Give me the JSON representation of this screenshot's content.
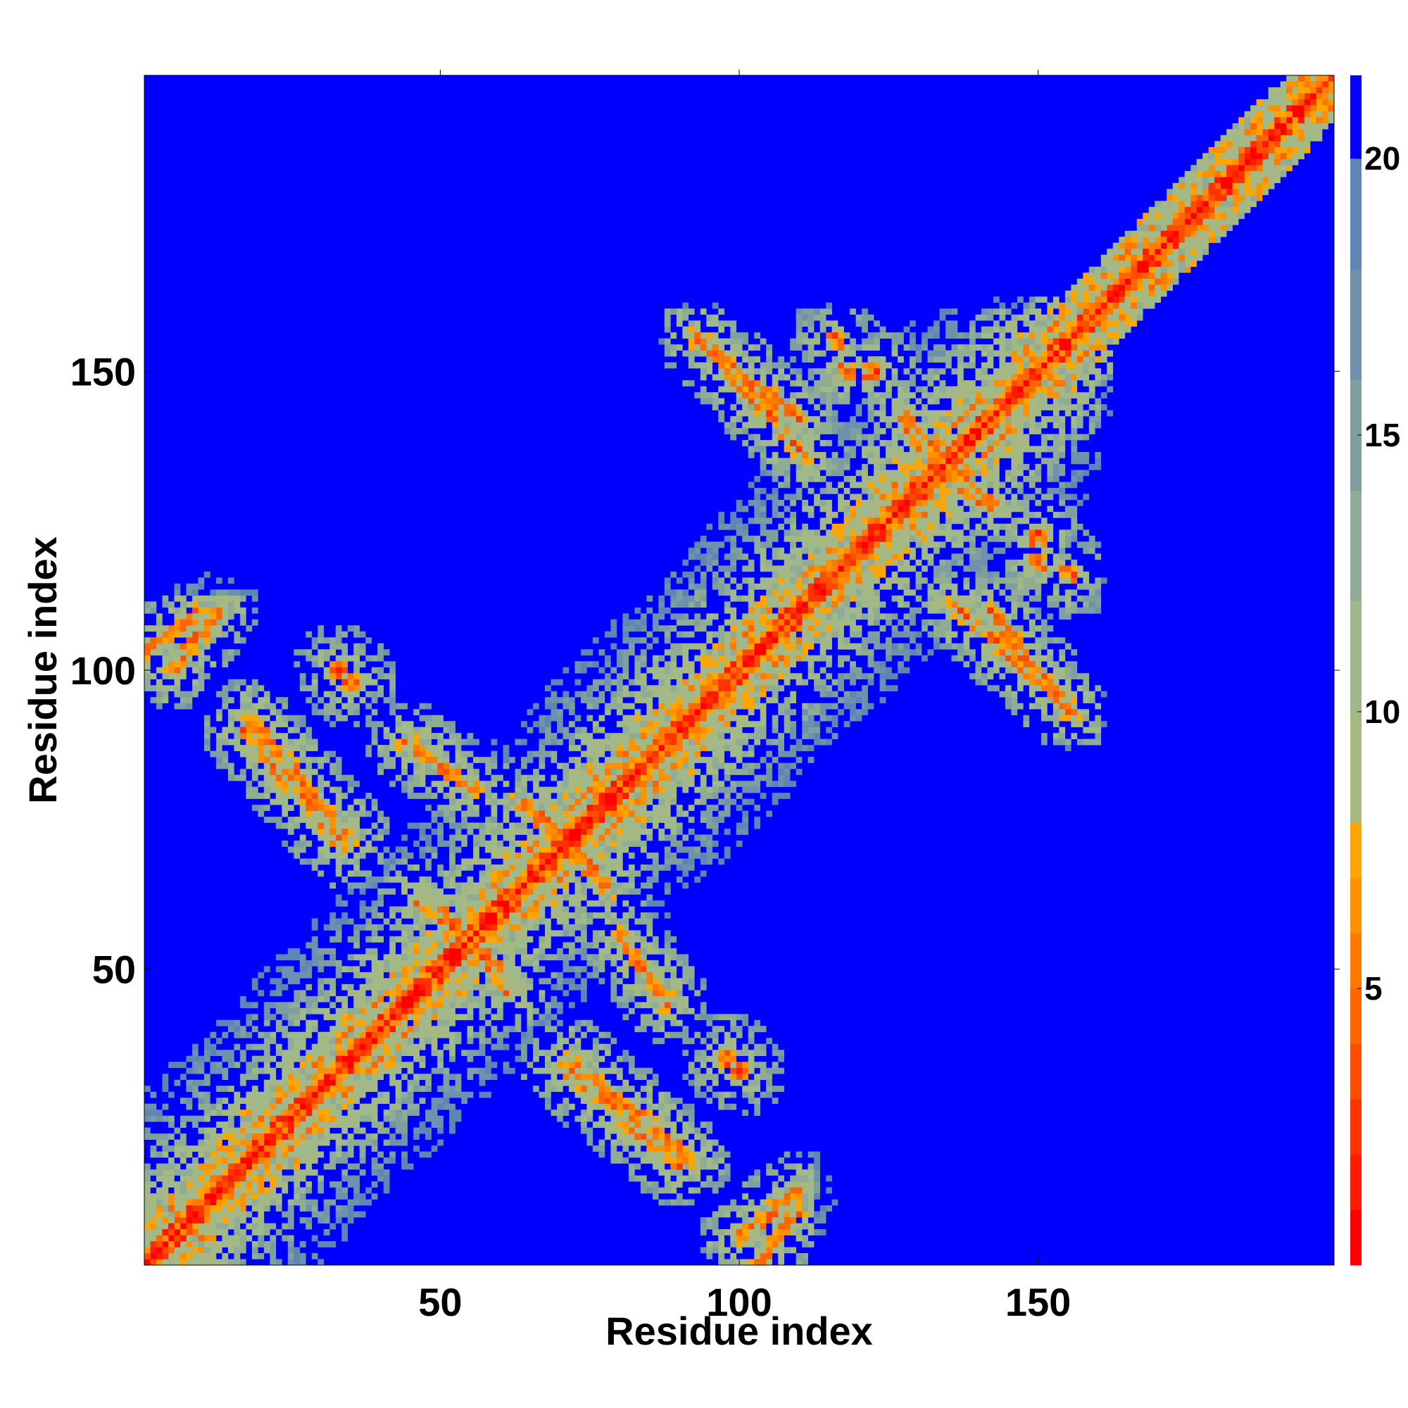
{
  "chart_data": {
    "type": "heatmap",
    "title": "",
    "xlabel": "Residue index",
    "ylabel": "Residue index",
    "xlim": [
      1,
      199
    ],
    "ylim": [
      1,
      199
    ],
    "x_ticks": [
      50,
      100,
      150
    ],
    "y_ticks": [
      50,
      100,
      150
    ],
    "x_tick_labels": [
      "50",
      "100",
      "150"
    ],
    "y_tick_labels": [
      "50",
      "100",
      "150"
    ],
    "colorbar": {
      "ticks": [
        5,
        10,
        15,
        20
      ],
      "tick_labels": [
        "5",
        "10",
        "15",
        "20"
      ],
      "range": [
        0,
        21.5
      ],
      "levels": [
        {
          "max": 1,
          "color": "#ff0000"
        },
        {
          "max": 2,
          "color": "#ff1a00"
        },
        {
          "max": 3,
          "color": "#ff3300"
        },
        {
          "max": 4,
          "color": "#ff4d00"
        },
        {
          "max": 5,
          "color": "#ff6600"
        },
        {
          "max": 6,
          "color": "#ff7a00"
        },
        {
          "max": 7,
          "color": "#ff9000"
        },
        {
          "max": 8,
          "color": "#ffa500"
        },
        {
          "max": 10,
          "color": "#a8b882"
        },
        {
          "max": 12,
          "color": "#9fb98a"
        },
        {
          "max": 14,
          "color": "#90ac95"
        },
        {
          "max": 16,
          "color": "#7f9e9f"
        },
        {
          "max": 18,
          "color": "#6f92ac"
        },
        {
          "max": 20,
          "color": "#5e86b4"
        },
        {
          "max": 21.5,
          "color": "#0000ff"
        }
      ]
    },
    "features": {
      "diagonal": true,
      "helix_block_centers": [
        [
          45,
          45
        ],
        [
          70,
          70
        ],
        [
          120,
          120
        ],
        [
          140,
          140
        ]
      ],
      "antiparallel_bands": [
        {
          "from": [
            18,
            92
          ],
          "to": [
            35,
            72
          ]
        },
        {
          "from": [
            45,
            88
          ],
          "to": [
            55,
            80
          ]
        },
        {
          "from": [
            63,
            78
          ],
          "to": [
            78,
            64
          ]
        },
        {
          "from": [
            50,
            60
          ],
          "to": [
            62,
            46
          ]
        },
        {
          "from": [
            80,
            56
          ],
          "to": [
            88,
            44
          ]
        },
        {
          "from": [
            70,
            34
          ],
          "to": [
            90,
            17
          ]
        },
        {
          "from": [
            100,
            5
          ],
          "to": [
            110,
            13
          ]
        },
        {
          "from": [
            93,
            156
          ],
          "to": [
            111,
            136
          ]
        },
        {
          "from": [
            142,
            110
          ],
          "to": [
            155,
            93
          ]
        },
        {
          "from": [
            127,
            143
          ],
          "to": [
            140,
            128
          ]
        },
        {
          "from": [
            1,
            103
          ],
          "to": [
            10,
            110
          ]
        }
      ],
      "contact_spots": [
        [
          33,
          100
        ],
        [
          98,
          35
        ],
        [
          116,
          155
        ],
        [
          150,
          118
        ],
        [
          122,
          150
        ],
        [
          150,
          123
        ]
      ]
    }
  }
}
